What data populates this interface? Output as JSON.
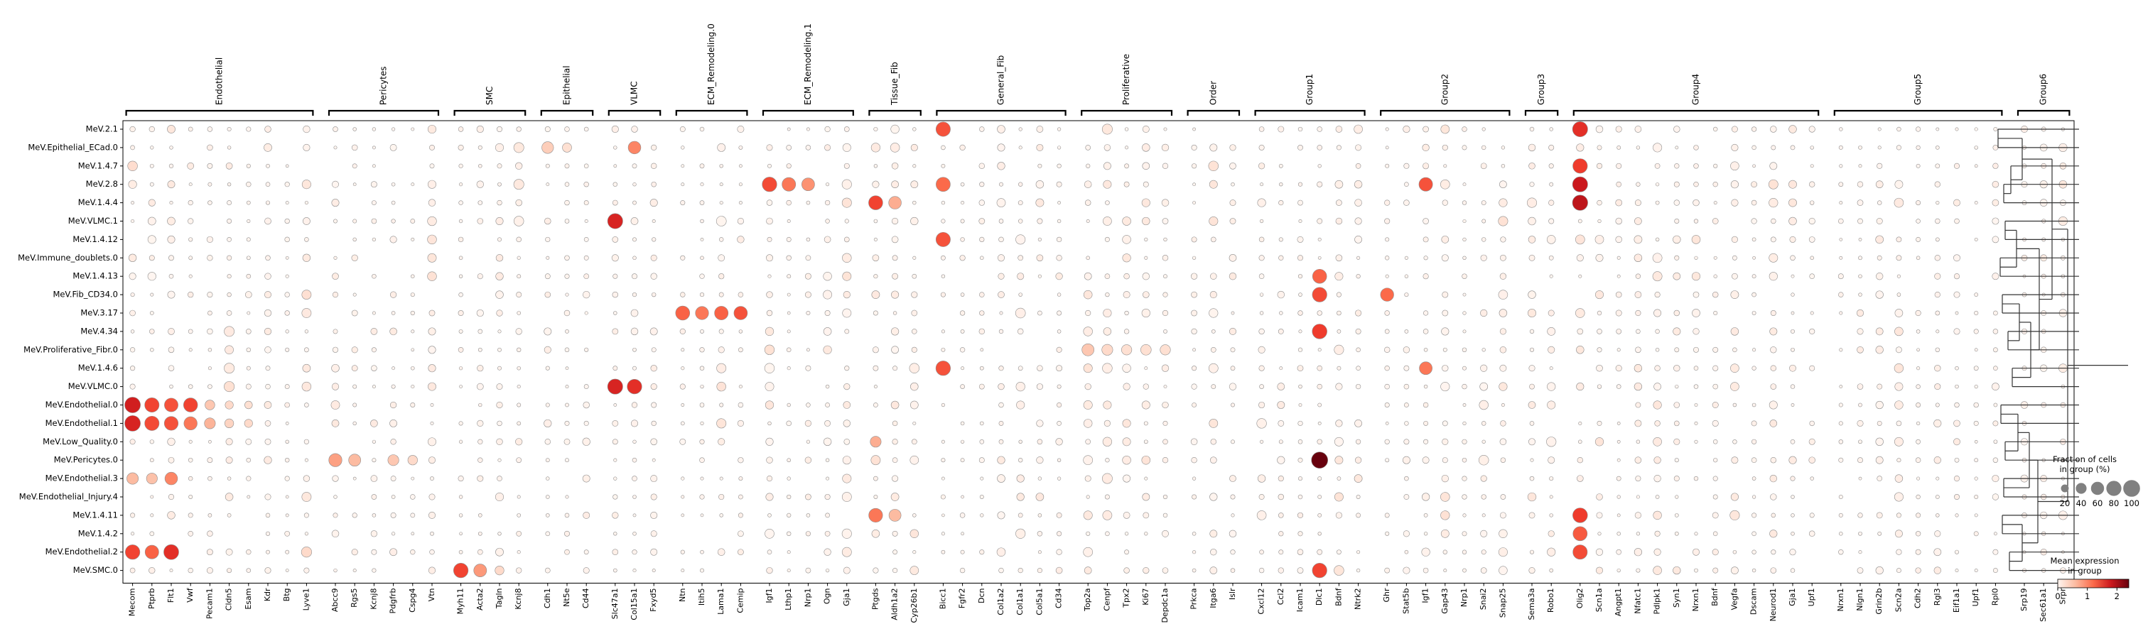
{
  "chart_data": {
    "type": "scatter",
    "title": "",
    "groups": [
      {
        "name": "Endothelial",
        "genes": [
          "Mecom",
          "Ptprb",
          "Flt1",
          "Vwf",
          "Pecam1",
          "Cldn5",
          "Esam",
          "Kdr",
          "Btg",
          "Lyve1"
        ]
      },
      {
        "name": "Pericytes",
        "genes": [
          "Abcc9",
          "Rgs5",
          "Kcnj8",
          "Pdgfrb",
          "Cspg4",
          "Vtn"
        ]
      },
      {
        "name": "SMC",
        "genes": [
          "Myh11",
          "Acta2",
          "Tagln",
          "Kcnj8"
        ]
      },
      {
        "name": "Epithelial",
        "genes": [
          "Cdh1",
          "Nt5e",
          "Cd44"
        ]
      },
      {
        "name": "VLMC",
        "genes": [
          "Slc47a1",
          "Col15a1",
          "Fxyd5"
        ]
      },
      {
        "name": "ECM_Remodeling.0",
        "genes": [
          "Ntn",
          "Itih5",
          "Lama1",
          "Cemip"
        ]
      },
      {
        "name": "ECM_Remodeling.1",
        "genes": [
          "Igf1",
          "Lthp1",
          "Nrp1",
          "Ogn",
          "Gja1"
        ]
      },
      {
        "name": "Tissue_Fib",
        "genes": [
          "Ptgds",
          "Aldh1a2",
          "Cyp26b1"
        ]
      },
      {
        "name": "General_Fib",
        "genes": [
          "Bicc1",
          "Fgfr2",
          "Dcn",
          "Col1a2",
          "Col1a1",
          "Col5a1",
          "Cd34"
        ]
      },
      {
        "name": "Proliferative",
        "genes": [
          "Top2a",
          "Cenpf",
          "Tpx2",
          "Ki67",
          "Depdc1a"
        ]
      },
      {
        "name": "Order",
        "genes": [
          "Prkca",
          "Itga6",
          "Islr"
        ]
      },
      {
        "name": "Group1",
        "genes": [
          "Cxcl12",
          "Ccl2",
          "Icam1",
          "Dlc1",
          "Bdnf",
          "Ntrk2"
        ]
      },
      {
        "name": "Group2",
        "genes": [
          "Ghr",
          "Stat5b",
          "Igf1",
          "Gap43",
          "Nrp1",
          "Snai2",
          "Snap25"
        ]
      },
      {
        "name": "Group3",
        "genes": [
          "Sema3a",
          "Robo1"
        ]
      },
      {
        "name": "Group4",
        "genes": [
          "Olig2",
          "Scn1a",
          "Angpt1",
          "Nfatc1",
          "Pdlpk1",
          "Syn1",
          "Nrxn1",
          "Bdnf",
          "Vegfa",
          "Dscam",
          "Neurod1",
          "Gja1",
          "Upf1"
        ]
      },
      {
        "name": "Group5",
        "genes": [
          "Nrxn1",
          "Nlgn1",
          "Grin2b",
          "Scn2a",
          "Cdh2",
          "Rgl3",
          "Eif1a1",
          "Upf1",
          "Rpl0"
        ]
      },
      {
        "name": "Group6",
        "genes": [
          "Srp19",
          "Sec61a1",
          "Srpr"
        ]
      }
    ],
    "rows": [
      "MeV.2.1",
      "MeV.Epithelial_ECad.0",
      "MeV.1.4.7",
      "MeV.2.8",
      "MeV.1.4.4",
      "MeV.VLMC.1",
      "MeV.1.4.12",
      "MeV.Immune_doublets.0",
      "MeV.1.4.13",
      "MeV.Fib_CD34.0",
      "MeV.3.17",
      "MeV.4.34",
      "MeV.Proliferative_Fibr.0",
      "MeV.1.4.6",
      "MeV.VLMC.0",
      "MeV.Endothelial.0",
      "MeV.Endothelial.1",
      "MeV.Low_Quality.0",
      "MeV.Pericytes.0",
      "MeV.Endothelial.3",
      "MeV.Endothelial_Injury.4",
      "MeV.1.4.11",
      "MeV.1.4.2",
      "MeV.Endothelial.2",
      "MeV.SMC.0"
    ],
    "highlights": [
      {
        "row": 15,
        "col": 0,
        "size": 92,
        "expr": 1.75
      },
      {
        "row": 15,
        "col": 1,
        "size": 78,
        "expr": 1.45
      },
      {
        "row": 15,
        "col": 2,
        "size": 70,
        "expr": 1.35
      },
      {
        "row": 15,
        "col": 3,
        "size": 74,
        "expr": 1.45
      },
      {
        "row": 15,
        "col": 4,
        "size": 36,
        "expr": 0.5
      },
      {
        "row": 15,
        "col": 5,
        "size": 25,
        "expr": 0.35
      },
      {
        "row": 15,
        "col": 6,
        "size": 22,
        "expr": 0.3
      },
      {
        "row": 16,
        "col": 0,
        "size": 92,
        "expr": 1.7
      },
      {
        "row": 16,
        "col": 1,
        "size": 78,
        "expr": 1.4
      },
      {
        "row": 16,
        "col": 2,
        "size": 72,
        "expr": 1.35
      },
      {
        "row": 16,
        "col": 3,
        "size": 66,
        "expr": 1.1
      },
      {
        "row": 16,
        "col": 4,
        "size": 45,
        "expr": 0.65
      },
      {
        "row": 16,
        "col": 5,
        "size": 30,
        "expr": 0.4
      },
      {
        "row": 16,
        "col": 6,
        "size": 25,
        "expr": 0.35
      },
      {
        "row": 19,
        "col": 0,
        "size": 50,
        "expr": 0.6
      },
      {
        "row": 19,
        "col": 1,
        "size": 45,
        "expr": 0.55
      },
      {
        "row": 19,
        "col": 2,
        "size": 60,
        "expr": 1.0
      },
      {
        "row": 23,
        "col": 0,
        "size": 80,
        "expr": 1.45
      },
      {
        "row": 23,
        "col": 1,
        "size": 70,
        "expr": 1.25
      },
      {
        "row": 23,
        "col": 2,
        "size": 84,
        "expr": 1.6
      },
      {
        "row": 23,
        "col": 9,
        "size": 40,
        "expr": 0.35
      },
      {
        "row": 18,
        "col": 10,
        "size": 65,
        "expr": 0.8
      },
      {
        "row": 18,
        "col": 11,
        "size": 55,
        "expr": 0.6
      },
      {
        "row": 18,
        "col": 13,
        "size": 45,
        "expr": 0.5
      },
      {
        "row": 18,
        "col": 14,
        "size": 35,
        "expr": 0.35
      },
      {
        "row": 24,
        "col": 16,
        "size": 80,
        "expr": 1.45
      },
      {
        "row": 24,
        "col": 17,
        "size": 62,
        "expr": 0.85
      },
      {
        "row": 24,
        "col": 18,
        "size": 30,
        "expr": 0.35
      },
      {
        "row": 1,
        "col": 20,
        "size": 52,
        "expr": 0.45
      },
      {
        "row": 1,
        "col": 21,
        "size": 32,
        "expr": 0.3
      },
      {
        "row": 1,
        "col": 24,
        "size": 60,
        "expr": 1.0
      },
      {
        "row": 5,
        "col": 23,
        "size": 86,
        "expr": 1.7
      },
      {
        "row": 14,
        "col": 23,
        "size": 86,
        "expr": 1.7
      },
      {
        "row": 14,
        "col": 24,
        "size": 80,
        "expr": 1.6
      },
      {
        "row": 10,
        "col": 26,
        "size": 75,
        "expr": 1.25
      },
      {
        "row": 10,
        "col": 27,
        "size": 65,
        "expr": 1.1
      },
      {
        "row": 10,
        "col": 28,
        "size": 70,
        "expr": 1.25
      },
      {
        "row": 10,
        "col": 29,
        "size": 68,
        "expr": 1.35
      },
      {
        "row": 3,
        "col": 30,
        "size": 80,
        "expr": 1.4
      },
      {
        "row": 3,
        "col": 31,
        "size": 70,
        "expr": 1.1
      },
      {
        "row": 3,
        "col": 32,
        "size": 62,
        "expr": 0.9
      },
      {
        "row": 4,
        "col": 35,
        "size": 75,
        "expr": 1.45
      },
      {
        "row": 4,
        "col": 36,
        "size": 60,
        "expr": 0.7
      },
      {
        "row": 21,
        "col": 35,
        "size": 72,
        "expr": 1.1
      },
      {
        "row": 21,
        "col": 36,
        "size": 55,
        "expr": 0.6
      },
      {
        "row": 17,
        "col": 35,
        "size": 45,
        "expr": 0.7
      },
      {
        "row": 0,
        "col": 38,
        "size": 78,
        "expr": 1.35
      },
      {
        "row": 6,
        "col": 38,
        "size": 78,
        "expr": 1.35
      },
      {
        "row": 13,
        "col": 38,
        "size": 80,
        "expr": 1.35
      },
      {
        "row": 3,
        "col": 38,
        "size": 76,
        "expr": 1.2
      },
      {
        "row": 12,
        "col": 45,
        "size": 55,
        "expr": 0.5
      },
      {
        "row": 12,
        "col": 46,
        "size": 45,
        "expr": 0.35
      },
      {
        "row": 12,
        "col": 47,
        "size": 40,
        "expr": 0.3
      },
      {
        "row": 12,
        "col": 48,
        "size": 42,
        "expr": 0.3
      },
      {
        "row": 12,
        "col": 49,
        "size": 40,
        "expr": 0.3
      },
      {
        "row": 18,
        "col": 56,
        "size": 100,
        "expr": 2.4
      },
      {
        "row": 9,
        "col": 56,
        "size": 80,
        "expr": 1.4
      },
      {
        "row": 11,
        "col": 56,
        "size": 82,
        "expr": 1.5
      },
      {
        "row": 24,
        "col": 56,
        "size": 80,
        "expr": 1.45
      },
      {
        "row": 8,
        "col": 56,
        "size": 75,
        "expr": 1.25
      },
      {
        "row": 3,
        "col": 61,
        "size": 70,
        "expr": 1.35
      },
      {
        "row": 13,
        "col": 61,
        "size": 62,
        "expr": 1.1
      },
      {
        "row": 9,
        "col": 59,
        "size": 66,
        "expr": 1.2
      },
      {
        "row": 0,
        "col": 68,
        "size": 86,
        "expr": 1.6
      },
      {
        "row": 2,
        "col": 68,
        "size": 80,
        "expr": 1.5
      },
      {
        "row": 3,
        "col": 68,
        "size": 86,
        "expr": 1.8
      },
      {
        "row": 4,
        "col": 68,
        "size": 88,
        "expr": 1.9
      },
      {
        "row": 21,
        "col": 68,
        "size": 82,
        "expr": 1.5
      },
      {
        "row": 23,
        "col": 68,
        "size": 78,
        "expr": 1.4
      },
      {
        "row": 22,
        "col": 68,
        "size": 76,
        "expr": 1.3
      }
    ],
    "legend": {
      "size_title": "Fraction of cells in group (%)",
      "size_ticks": [
        20,
        40,
        60,
        80,
        100
      ],
      "color_title": "Mean expression in group",
      "color_ticks": [
        0,
        1,
        2
      ],
      "color_range": [
        0,
        2.4
      ]
    },
    "dendrogram": "right"
  }
}
